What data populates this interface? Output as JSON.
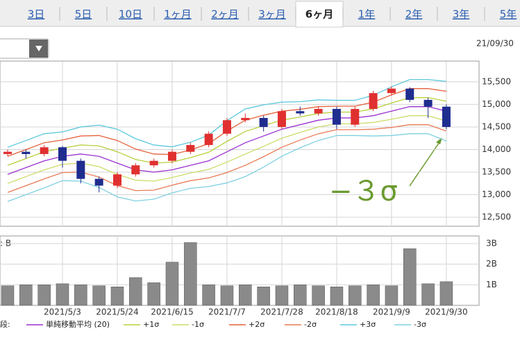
{
  "tabs": [
    {
      "label": "3日",
      "selected": false
    },
    {
      "label": "5日",
      "selected": false
    },
    {
      "label": "10日",
      "selected": false
    },
    {
      "label": "1ヶ月",
      "selected": false
    },
    {
      "label": "2ヶ月",
      "selected": false
    },
    {
      "label": "3ヶ月",
      "selected": false
    },
    {
      "label": "6ヶ月",
      "selected": true
    },
    {
      "label": "1年",
      "selected": false
    },
    {
      "label": "2年",
      "selected": false
    },
    {
      "label": "3年",
      "selected": false
    },
    {
      "label": "5年",
      "selected": false
    }
  ],
  "date": "21/09/30",
  "chart_data": [
    {
      "type": "candlestick",
      "annotation": "−３σ",
      "annotation_color": "#6a9a30",
      "up_color": "#e03030",
      "down_color": "#1f2d8f",
      "open": [
        13900,
        13950,
        13900,
        14050,
        13750,
        13350,
        13200,
        13450,
        13650,
        13750,
        13950,
        14100,
        14350,
        14650,
        14700,
        14500,
        14850,
        14800,
        14900,
        14550,
        14900,
        15250,
        15350,
        15100,
        14950
      ],
      "high": [
        14000,
        14000,
        14100,
        14080,
        13800,
        13400,
        13500,
        13700,
        13800,
        14000,
        14150,
        14400,
        14700,
        14800,
        14750,
        14900,
        14950,
        14950,
        14950,
        14950,
        15300,
        15400,
        15380,
        15150,
        15000
      ],
      "low": [
        13850,
        13800,
        13850,
        13600,
        13250,
        13050,
        13150,
        13400,
        13600,
        13700,
        13900,
        14050,
        14300,
        14600,
        14400,
        14450,
        14750,
        14750,
        14450,
        14500,
        14850,
        15200,
        15050,
        14700,
        14450
      ],
      "close": [
        13950,
        13900,
        14050,
        13750,
        13350,
        13200,
        13450,
        13650,
        13750,
        13950,
        14100,
        14350,
        14650,
        14700,
        14500,
        14850,
        14800,
        14900,
        14550,
        14900,
        15250,
        15350,
        15100,
        14950,
        14500
      ],
      "legend_title": "段:",
      "series": [
        {
          "name": "単純移動平均 (20)",
          "color": "#9b30d0",
          "values": [
            13450,
            13600,
            13750,
            13850,
            13900,
            13850,
            13700,
            13550,
            13500,
            13550,
            13650,
            13750,
            13950,
            14150,
            14300,
            14450,
            14550,
            14650,
            14700,
            14700,
            14750,
            14850,
            14950,
            14950,
            14850
          ]
        },
        {
          "name": "+1σ",
          "color": "#b8cf3c",
          "values": [
            13650,
            13800,
            13950,
            14030,
            14100,
            14080,
            13950,
            13780,
            13700,
            13720,
            13820,
            13940,
            14180,
            14400,
            14530,
            14650,
            14720,
            14800,
            14830,
            14830,
            14900,
            15030,
            15150,
            15150,
            15070
          ]
        },
        {
          "name": "-1σ",
          "color": "#cddc6a",
          "values": [
            13250,
            13400,
            13550,
            13670,
            13700,
            13620,
            13450,
            13320,
            13300,
            13380,
            13480,
            13560,
            13720,
            13900,
            14070,
            14250,
            14380,
            14500,
            14570,
            14570,
            14600,
            14670,
            14750,
            14750,
            14630
          ]
        },
        {
          "name": "+2σ",
          "color": "#e5603a",
          "values": [
            13850,
            14000,
            14150,
            14210,
            14300,
            14310,
            14200,
            14010,
            13900,
            13890,
            13990,
            14130,
            14410,
            14650,
            14760,
            14850,
            14890,
            14950,
            14960,
            14960,
            15050,
            15210,
            15350,
            15350,
            15290
          ]
        },
        {
          "name": "-2σ",
          "color": "#e87a55",
          "values": [
            13050,
            13200,
            13350,
            13490,
            13500,
            13390,
            13200,
            13090,
            13100,
            13210,
            13310,
            13370,
            13490,
            13650,
            13840,
            14050,
            14210,
            14350,
            14440,
            14440,
            14450,
            14490,
            14550,
            14550,
            14410
          ]
        },
        {
          "name": "+3σ",
          "color": "#5cc8dc",
          "values": [
            14050,
            14200,
            14350,
            14390,
            14500,
            14540,
            14450,
            14240,
            14100,
            14060,
            14160,
            14320,
            14640,
            14900,
            14990,
            15050,
            15060,
            15100,
            15090,
            15090,
            15200,
            15390,
            15550,
            15550,
            15510
          ]
        },
        {
          "name": "-3σ",
          "color": "#7fd0e0",
          "values": [
            12850,
            13000,
            13150,
            13310,
            13300,
            13160,
            12950,
            12860,
            12900,
            13040,
            13140,
            13180,
            13260,
            13400,
            13610,
            13850,
            14040,
            14200,
            14310,
            14310,
            14300,
            14310,
            14350,
            14350,
            14190
          ]
        }
      ],
      "ylim": [
        12300,
        15960
      ],
      "yticks": [
        {
          "value": 12500,
          "label": "12,500"
        },
        {
          "value": 13000,
          "label": "13,000"
        },
        {
          "value": 13500,
          "label": "13,500"
        },
        {
          "value": 14000,
          "label": "14,000"
        },
        {
          "value": 14500,
          "label": "14,500"
        },
        {
          "value": 15000,
          "label": "15,000"
        },
        {
          "value": 15500,
          "label": "15,500"
        }
      ],
      "grid": true
    },
    {
      "type": "bar",
      "title": ": B",
      "color": "#8a8a8a",
      "categories": [
        null,
        null,
        null,
        "2021/5/3",
        null,
        null,
        "2021/5/24",
        null,
        null,
        "2021/6/15",
        null,
        null,
        "2021/7/7",
        null,
        null,
        "2021/7/28",
        null,
        null,
        "2021/8/18",
        null,
        null,
        "2021/9/9",
        null,
        null,
        "2021/9/30"
      ],
      "values": [
        0.95,
        1.0,
        1.0,
        1.05,
        1.0,
        0.95,
        0.9,
        1.35,
        1.1,
        2.1,
        3.05,
        1.0,
        0.95,
        1.0,
        0.9,
        0.95,
        1.0,
        0.95,
        0.9,
        0.95,
        1.0,
        0.95,
        2.75,
        1.05,
        1.15
      ],
      "ylim": [
        0,
        3.37
      ],
      "yticks": [
        {
          "value": 1,
          "label": "1B"
        },
        {
          "value": 2,
          "label": "2B"
        },
        {
          "value": 3,
          "label": "3B"
        }
      ],
      "grid": true
    }
  ]
}
